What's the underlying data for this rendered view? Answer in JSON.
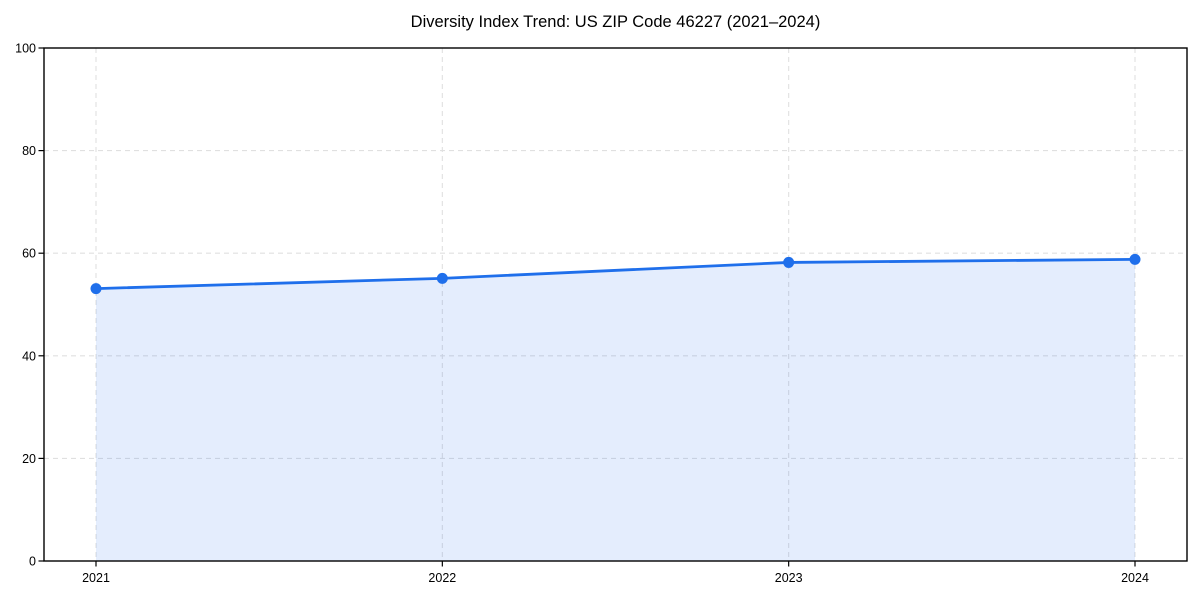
{
  "chart_data": {
    "type": "area",
    "title": "Diversity Index Trend: US ZIP Code 46227 (2021–2024)",
    "categories": [
      "2021",
      "2022",
      "2023",
      "2024"
    ],
    "values": [
      53.1,
      55.1,
      58.2,
      58.8
    ],
    "xlabel": "",
    "ylabel": "",
    "ylim": [
      0,
      100
    ],
    "yticks": [
      0,
      20,
      40,
      60,
      80,
      100
    ],
    "grid": true,
    "grid_style": "dashed",
    "legend": false,
    "marker": "circle",
    "colors": {
      "line": "#1f6feb",
      "fill_opacity": 0.12,
      "grid": "#e0e0e0",
      "axis": "#000000",
      "text": "#000000",
      "background": "#ffffff"
    }
  }
}
